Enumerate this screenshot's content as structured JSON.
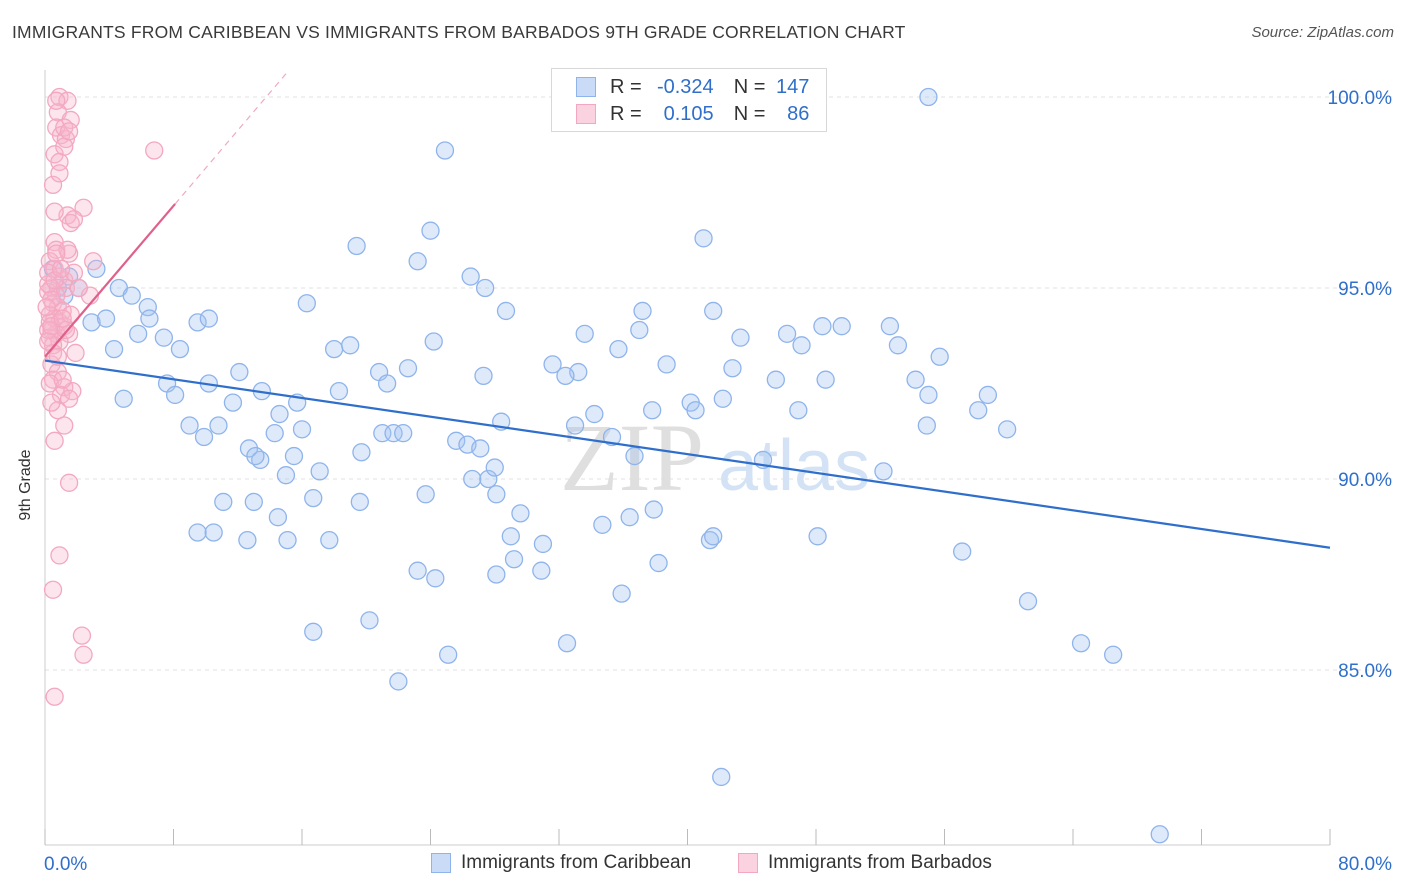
{
  "header": {
    "title": "IMMIGRANTS FROM CARIBBEAN VS IMMIGRANTS FROM BARBADOS 9TH GRADE CORRELATION CHART",
    "source": "Source: ZipAtlas.com"
  },
  "watermark": {
    "zip": "ZIP",
    "atlas": "atlas"
  },
  "stats_legend": {
    "rows": [
      {
        "r_label": "R =",
        "r_value": "-0.324",
        "n_label": "N =",
        "n_value": "147",
        "color": "#8fb4ec"
      },
      {
        "r_label": "R =",
        "r_value": "0.105",
        "n_label": "N =",
        "n_value": "86",
        "color": "#f3a8c0"
      }
    ]
  },
  "chart_data": {
    "type": "scatter",
    "title": "IMMIGRANTS FROM CARIBBEAN VS IMMIGRANTS FROM BARBADOS 9TH GRADE CORRELATION CHART",
    "xlabel": "",
    "ylabel": "9th Grade",
    "xlim": [
      0,
      80
    ],
    "ylim": [
      80,
      100.5
    ],
    "x_tick_labels": [
      "0.0%",
      "80.0%"
    ],
    "y_ticks": [
      85,
      90,
      95,
      100
    ],
    "y_tick_labels": [
      "85.0%",
      "90.0%",
      "95.0%",
      "100.0%"
    ],
    "grid": true,
    "legend_position": "top-center",
    "colors": {
      "caribbean": "#8fb4ec",
      "barbados": "#f3a8c0",
      "caribbean_line": "#2f6fcb",
      "barbados_line": "#e0608a",
      "tick_label": "#2f6fcb"
    },
    "series": [
      {
        "name": "Immigrants from Caribbean",
        "trend": {
          "x": [
            0,
            80
          ],
          "y": [
            93.1,
            88.2
          ]
        },
        "points": [
          [
            0.5,
            95.5
          ],
          [
            0.8,
            95.0
          ],
          [
            1.5,
            95.3
          ],
          [
            1.2,
            94.8
          ],
          [
            2.1,
            95.0
          ],
          [
            3.2,
            95.5
          ],
          [
            4.6,
            95.0
          ],
          [
            5.4,
            94.8
          ],
          [
            2.9,
            94.1
          ],
          [
            3.8,
            94.2
          ],
          [
            6.4,
            94.5
          ],
          [
            6.5,
            94.2
          ],
          [
            5.8,
            93.8
          ],
          [
            7.4,
            93.7
          ],
          [
            8.4,
            93.4
          ],
          [
            9.5,
            94.1
          ],
          [
            10.2,
            94.2
          ],
          [
            4.3,
            93.4
          ],
          [
            7.6,
            92.5
          ],
          [
            8.1,
            92.2
          ],
          [
            10.2,
            92.5
          ],
          [
            11.7,
            92.0
          ],
          [
            12.1,
            92.8
          ],
          [
            4.9,
            92.1
          ],
          [
            9.0,
            91.4
          ],
          [
            9.9,
            91.1
          ],
          [
            10.8,
            91.4
          ],
          [
            12.7,
            90.8
          ],
          [
            13.4,
            90.5
          ],
          [
            14.3,
            91.2
          ],
          [
            13.1,
            90.6
          ],
          [
            14.6,
            91.7
          ],
          [
            15.5,
            90.6
          ],
          [
            16.0,
            91.3
          ],
          [
            15.0,
            90.1
          ],
          [
            14.5,
            89.0
          ],
          [
            13.0,
            89.4
          ],
          [
            11.1,
            89.4
          ],
          [
            9.5,
            88.6
          ],
          [
            10.5,
            88.6
          ],
          [
            12.6,
            88.4
          ],
          [
            15.1,
            88.4
          ],
          [
            17.7,
            88.4
          ],
          [
            16.3,
            94.6
          ],
          [
            19.4,
            96.1
          ],
          [
            18.0,
            93.4
          ],
          [
            19.0,
            93.5
          ],
          [
            18.3,
            92.3
          ],
          [
            20.8,
            92.8
          ],
          [
            21.3,
            92.5
          ],
          [
            22.6,
            92.9
          ],
          [
            21.0,
            91.2
          ],
          [
            21.7,
            91.2
          ],
          [
            22.3,
            91.2
          ],
          [
            19.7,
            90.7
          ],
          [
            19.6,
            89.4
          ],
          [
            23.2,
            95.7
          ],
          [
            24.0,
            96.5
          ],
          [
            24.2,
            93.6
          ],
          [
            23.7,
            89.6
          ],
          [
            26.5,
            95.3
          ],
          [
            27.4,
            95.0
          ],
          [
            28.7,
            94.4
          ],
          [
            27.3,
            92.7
          ],
          [
            25.6,
            91.0
          ],
          [
            26.3,
            90.9
          ],
          [
            27.1,
            90.8
          ],
          [
            26.6,
            90.0
          ],
          [
            27.6,
            90.0
          ],
          [
            28.1,
            89.6
          ],
          [
            28.0,
            90.3
          ],
          [
            23.2,
            87.6
          ],
          [
            24.3,
            87.4
          ],
          [
            20.2,
            86.3
          ],
          [
            16.7,
            86.0
          ],
          [
            22.0,
            84.7
          ],
          [
            25.1,
            85.4
          ],
          [
            29.2,
            87.9
          ],
          [
            28.1,
            87.5
          ],
          [
            29.0,
            88.5
          ],
          [
            29.6,
            89.1
          ],
          [
            30.9,
            87.6
          ],
          [
            31.0,
            88.3
          ],
          [
            28.4,
            91.5
          ],
          [
            24.9,
            98.6
          ],
          [
            33.6,
            93.8
          ],
          [
            33.2,
            92.8
          ],
          [
            31.6,
            93.0
          ],
          [
            32.4,
            92.7
          ],
          [
            33.0,
            91.4
          ],
          [
            35.7,
            93.4
          ],
          [
            35.3,
            91.1
          ],
          [
            36.7,
            90.6
          ],
          [
            34.7,
            88.8
          ],
          [
            35.9,
            87.0
          ],
          [
            32.5,
            85.7
          ],
          [
            37.2,
            94.4
          ],
          [
            37.0,
            93.9
          ],
          [
            38.7,
            93.0
          ],
          [
            37.8,
            91.8
          ],
          [
            37.9,
            89.2
          ],
          [
            38.2,
            87.8
          ],
          [
            40.2,
            92.0
          ],
          [
            40.5,
            91.8
          ],
          [
            41.4,
            88.4
          ],
          [
            41.6,
            88.5
          ],
          [
            41.0,
            96.3
          ],
          [
            41.6,
            94.4
          ],
          [
            42.2,
            92.1
          ],
          [
            43.3,
            93.7
          ],
          [
            42.8,
            92.9
          ],
          [
            44.7,
            90.5
          ],
          [
            45.5,
            92.6
          ],
          [
            46.2,
            93.8
          ],
          [
            47.1,
            93.5
          ],
          [
            46.9,
            91.8
          ],
          [
            48.4,
            94.0
          ],
          [
            49.6,
            94.0
          ],
          [
            48.6,
            92.6
          ],
          [
            48.1,
            88.5
          ],
          [
            52.2,
            90.2
          ],
          [
            55.0,
            100.0
          ],
          [
            54.9,
            91.4
          ],
          [
            55.7,
            93.2
          ],
          [
            55.0,
            92.2
          ],
          [
            58.1,
            91.8
          ],
          [
            57.1,
            88.1
          ],
          [
            61.2,
            86.8
          ],
          [
            64.5,
            85.7
          ],
          [
            66.5,
            85.4
          ],
          [
            42.1,
            82.2
          ],
          [
            69.4,
            80.7
          ],
          [
            58.7,
            92.2
          ],
          [
            59.9,
            91.3
          ],
          [
            53.1,
            93.5
          ],
          [
            54.2,
            92.6
          ],
          [
            52.6,
            94.0
          ],
          [
            34.2,
            91.7
          ],
          [
            36.4,
            89.0
          ],
          [
            16.7,
            89.5
          ],
          [
            17.1,
            90.2
          ],
          [
            15.7,
            92.0
          ],
          [
            13.5,
            92.3
          ]
        ]
      },
      {
        "name": "Immigrants from Barbados",
        "trend": {
          "x": [
            0,
            8.1
          ],
          "y": [
            93.2,
            97.2
          ]
        },
        "points": [
          [
            0.9,
            100.0
          ],
          [
            1.4,
            99.9
          ],
          [
            0.8,
            99.6
          ],
          [
            1.6,
            99.4
          ],
          [
            0.7,
            99.2
          ],
          [
            1.0,
            99.0
          ],
          [
            1.3,
            98.9
          ],
          [
            0.6,
            98.5
          ],
          [
            0.9,
            98.3
          ],
          [
            6.8,
            98.6
          ],
          [
            1.2,
            98.7
          ],
          [
            0.5,
            97.7
          ],
          [
            2.4,
            97.1
          ],
          [
            1.4,
            96.9
          ],
          [
            1.6,
            96.7
          ],
          [
            0.6,
            96.2
          ],
          [
            0.7,
            96.0
          ],
          [
            1.5,
            95.9
          ],
          [
            0.3,
            95.7
          ],
          [
            0.6,
            95.5
          ],
          [
            0.9,
            95.3
          ],
          [
            1.2,
            95.2
          ],
          [
            1.3,
            95.0
          ],
          [
            0.4,
            95.0
          ],
          [
            0.7,
            94.8
          ],
          [
            0.2,
            94.9
          ],
          [
            0.5,
            94.6
          ],
          [
            0.8,
            94.5
          ],
          [
            1.1,
            94.4
          ],
          [
            0.3,
            94.3
          ],
          [
            0.6,
            94.2
          ],
          [
            0.9,
            94.1
          ],
          [
            1.2,
            94.0
          ],
          [
            0.4,
            93.9
          ],
          [
            0.7,
            93.8
          ],
          [
            1.5,
            93.8
          ],
          [
            0.3,
            93.7
          ],
          [
            0.9,
            93.6
          ],
          [
            0.5,
            93.5
          ],
          [
            1.9,
            93.3
          ],
          [
            0.4,
            93.0
          ],
          [
            0.8,
            92.8
          ],
          [
            0.5,
            92.6
          ],
          [
            0.3,
            92.5
          ],
          [
            1.2,
            92.4
          ],
          [
            1.0,
            92.2
          ],
          [
            1.7,
            92.3
          ],
          [
            1.5,
            92.1
          ],
          [
            0.8,
            91.8
          ],
          [
            1.2,
            91.4
          ],
          [
            0.6,
            91.0
          ],
          [
            1.5,
            89.9
          ],
          [
            0.9,
            88.0
          ],
          [
            0.5,
            87.1
          ],
          [
            2.3,
            85.9
          ],
          [
            2.4,
            85.4
          ],
          [
            0.6,
            84.3
          ],
          [
            3.0,
            95.7
          ],
          [
            2.8,
            94.8
          ],
          [
            1.8,
            95.4
          ],
          [
            2.1,
            95.0
          ],
          [
            1.6,
            94.3
          ],
          [
            0.4,
            94.7
          ],
          [
            0.2,
            95.1
          ],
          [
            0.3,
            94.1
          ],
          [
            0.5,
            93.3
          ],
          [
            0.2,
            93.9
          ],
          [
            0.4,
            92.0
          ],
          [
            1.1,
            92.6
          ],
          [
            0.2,
            95.4
          ],
          [
            0.1,
            94.5
          ],
          [
            0.6,
            95.2
          ],
          [
            1.0,
            95.5
          ],
          [
            1.4,
            96.0
          ],
          [
            1.8,
            96.8
          ],
          [
            0.6,
            97.0
          ],
          [
            1.2,
            99.2
          ],
          [
            0.7,
            99.9
          ],
          [
            1.5,
            99.1
          ],
          [
            0.9,
            98.0
          ],
          [
            0.4,
            94.0
          ],
          [
            0.8,
            93.2
          ],
          [
            1.3,
            93.9
          ],
          [
            0.2,
            93.6
          ],
          [
            0.7,
            95.9
          ],
          [
            1.1,
            94.2
          ]
        ]
      }
    ]
  },
  "bottom_legend": {
    "items": [
      {
        "label": "Immigrants from Caribbean"
      },
      {
        "label": "Immigrants from Barbados"
      }
    ]
  }
}
